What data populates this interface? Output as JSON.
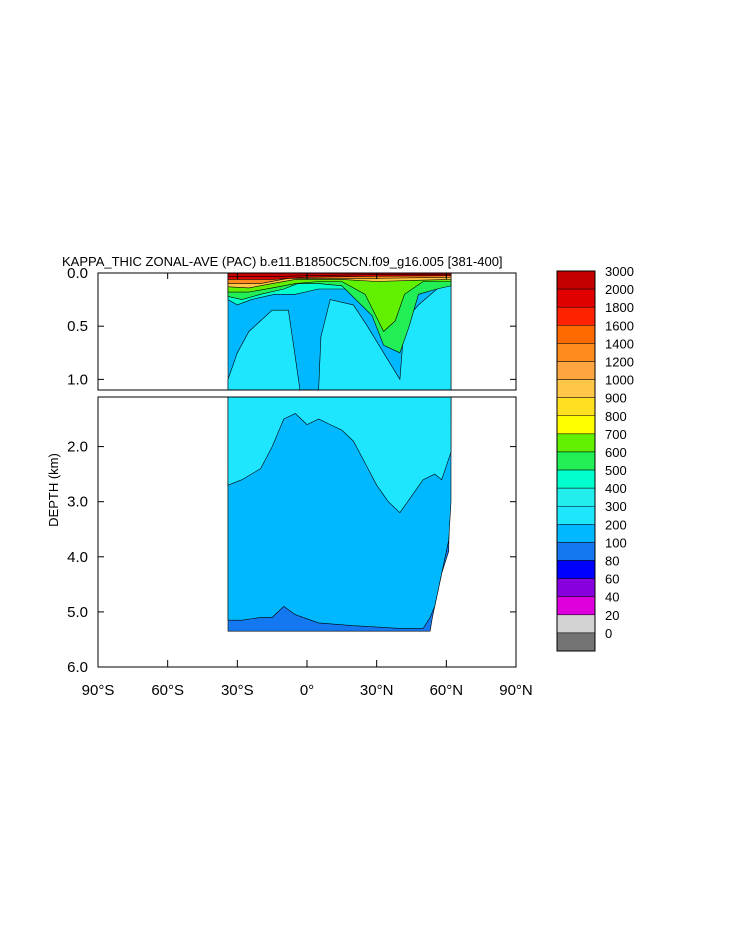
{
  "chart_data": {
    "type": "heatmap",
    "title": "KAPPA_THIC ZONAL-AVE (PAC) b.e11.B1850C5CN.f09_g16.005 [381-400]",
    "ylabel": "DEPTH (km)",
    "xlabel": "",
    "x_ticks": [
      "90°S",
      "60°S",
      "30°S",
      "0°",
      "30°N",
      "60°N",
      "90°N"
    ],
    "x_tick_values": [
      -90,
      -60,
      -30,
      0,
      30,
      60,
      90
    ],
    "upper_panel": {
      "ylim": [
        0,
        1.1
      ],
      "y_ticks": [
        "0.0",
        "0.5",
        "1.0"
      ],
      "y_tick_values": [
        0,
        0.5,
        1.0
      ]
    },
    "lower_panel": {
      "ylim": [
        1.1,
        6.0
      ],
      "y_ticks": [
        "2.0",
        "3.0",
        "4.0",
        "5.0",
        "6.0"
      ],
      "y_tick_values": [
        2,
        3,
        4,
        5,
        6
      ]
    },
    "grid": false,
    "legend_placement": "right",
    "colorbar_labels": [
      "3000",
      "2000",
      "1800",
      "1600",
      "1400",
      "1200",
      "1000",
      "900",
      "800",
      "700",
      "600",
      "500",
      "400",
      "300",
      "200",
      "100",
      "80",
      "60",
      "40",
      "20",
      "0"
    ],
    "colorbar_colors": [
      "#c40000",
      "#e00000",
      "#ff2200",
      "#ff6a00",
      "#ff8a1e",
      "#ffa640",
      "#ffc648",
      "#ffe020",
      "#ffff00",
      "#60f000",
      "#22ee55",
      "#00ffcc",
      "#22eeee",
      "#1ee6ff",
      "#00b8ff",
      "#1478f0",
      "#0000ff",
      "#8800dd",
      "#dd00dd",
      "#d2d2d2",
      "#737373"
    ],
    "fields": {
      "upper": [
        {
          "value": 300,
          "color": "#00b8ff",
          "outline": [
            [
              -34,
              0
            ],
            [
              62,
              0
            ],
            [
              62,
              1.1
            ],
            [
              -34,
              1.1
            ]
          ]
        },
        {
          "value": 400,
          "color": "#1ee6ff",
          "outline": [
            [
              -34,
              1.0
            ],
            [
              -30,
              0.75
            ],
            [
              -25,
              0.55
            ],
            [
              -15,
              0.35
            ],
            [
              -8,
              0.35
            ],
            [
              -5,
              0.8
            ],
            [
              -3,
              1.1
            ],
            [
              5,
              1.1
            ],
            [
              6,
              0.6
            ],
            [
              10,
              0.25
            ],
            [
              20,
              0.3
            ],
            [
              26,
              0.5
            ],
            [
              33,
              0.75
            ],
            [
              40,
              1.0
            ],
            [
              42,
              0.45
            ],
            [
              48,
              0.3
            ],
            [
              56,
              0.15
            ],
            [
              62,
              0.1
            ],
            [
              62,
              1.1
            ],
            [
              -34,
              1.1
            ]
          ]
        },
        {
          "value": 500,
          "color": "#00ffcc",
          "outline": [
            [
              -34,
              0.25
            ],
            [
              -30,
              0.3
            ],
            [
              -24,
              0.25
            ],
            [
              -14,
              0.2
            ],
            [
              -5,
              0.2
            ],
            [
              5,
              0.15
            ],
            [
              18,
              0.15
            ],
            [
              27,
              0.18
            ],
            [
              40,
              0.15
            ],
            [
              52,
              0.12
            ],
            [
              62,
              0.1
            ],
            [
              62,
              0.05
            ],
            [
              -34,
              0.05
            ]
          ]
        },
        {
          "value": 600,
          "color": "#22ee55",
          "outline": [
            [
              -34,
              0.22
            ],
            [
              -28,
              0.25
            ],
            [
              -20,
              0.2
            ],
            [
              -10,
              0.15
            ],
            [
              -4,
              0.1
            ],
            [
              5,
              0.1
            ],
            [
              15,
              0.12
            ],
            [
              28,
              0.4
            ],
            [
              33,
              0.68
            ],
            [
              40,
              0.75
            ],
            [
              44,
              0.5
            ],
            [
              48,
              0.2
            ],
            [
              56,
              0.15
            ],
            [
              62,
              0.12
            ],
            [
              62,
              0.05
            ],
            [
              -34,
              0.05
            ]
          ]
        },
        {
          "value": 700,
          "color": "#60f000",
          "outline": [
            [
              -34,
              0.18
            ],
            [
              -25,
              0.18
            ],
            [
              -15,
              0.14
            ],
            [
              -5,
              0.1
            ],
            [
              5,
              0.08
            ],
            [
              15,
              0.08
            ],
            [
              25,
              0.2
            ],
            [
              33,
              0.55
            ],
            [
              38,
              0.45
            ],
            [
              42,
              0.2
            ],
            [
              50,
              0.08
            ],
            [
              62,
              0.08
            ],
            [
              62,
              0.05
            ],
            [
              -34,
              0.05
            ]
          ]
        },
        {
          "value": 1000,
          "color": "#ffc648",
          "outline": [
            [
              -34,
              0.13
            ],
            [
              -25,
              0.14
            ],
            [
              -15,
              0.1
            ],
            [
              -5,
              0.06
            ],
            [
              5,
              0.06
            ],
            [
              15,
              0.06
            ],
            [
              30,
              0.08
            ],
            [
              45,
              0.07
            ],
            [
              62,
              0.06
            ],
            [
              62,
              0.02
            ],
            [
              -34,
              0.02
            ]
          ]
        },
        {
          "value": 1400,
          "color": "#ff8a1e",
          "outline": [
            [
              -34,
              0.1
            ],
            [
              -20,
              0.1
            ],
            [
              -8,
              0.05
            ],
            [
              5,
              0.05
            ],
            [
              30,
              0.05
            ],
            [
              62,
              0.04
            ],
            [
              62,
              0.02
            ],
            [
              -34,
              0.02
            ]
          ]
        },
        {
          "value": 2000,
          "color": "#e00000",
          "outline": [
            [
              -34,
              0.06
            ],
            [
              -15,
              0.06
            ],
            [
              0,
              0.04
            ],
            [
              30,
              0.03
            ],
            [
              62,
              0.025
            ],
            [
              62,
              0
            ],
            [
              -34,
              0
            ]
          ]
        },
        {
          "value": 3000,
          "color": "#c40000",
          "outline": [
            [
              -34,
              0.035
            ],
            [
              -15,
              0.035
            ],
            [
              0,
              0.025
            ],
            [
              30,
              0.015
            ],
            [
              62,
              0.012
            ],
            [
              62,
              0
            ],
            [
              -34,
              0
            ]
          ]
        }
      ],
      "lower": [
        {
          "value": 200,
          "color": "#1478f0",
          "outline": [
            [
              -34,
              1.1
            ],
            [
              62,
              1.1
            ],
            [
              62,
              1.4
            ],
            [
              61,
              3.9
            ],
            [
              58,
              4.3
            ],
            [
              56,
              4.7
            ],
            [
              54,
              5.1
            ],
            [
              53,
              5.35
            ],
            [
              -34,
              5.35
            ]
          ]
        },
        {
          "value": 300,
          "color": "#00b8ff",
          "outline": [
            [
              -34,
              1.1
            ],
            [
              62,
              1.1
            ],
            [
              62,
              3.0
            ],
            [
              61,
              3.7
            ],
            [
              59,
              4.1
            ],
            [
              57,
              4.5
            ],
            [
              55,
              4.9
            ],
            [
              53,
              5.1
            ],
            [
              50,
              5.3
            ],
            [
              40,
              5.3
            ],
            [
              20,
              5.25
            ],
            [
              5,
              5.2
            ],
            [
              -5,
              5.05
            ],
            [
              -10,
              4.9
            ],
            [
              -15,
              5.1
            ],
            [
              -20,
              5.1
            ],
            [
              -28,
              5.15
            ],
            [
              -34,
              5.15
            ]
          ]
        },
        {
          "value": 400,
          "color": "#1ee6ff",
          "outline": [
            [
              -34,
              2.7
            ],
            [
              -28,
              2.6
            ],
            [
              -20,
              2.4
            ],
            [
              -15,
              2.0
            ],
            [
              -10,
              1.5
            ],
            [
              -5,
              1.4
            ],
            [
              0,
              1.6
            ],
            [
              5,
              1.5
            ],
            [
              10,
              1.6
            ],
            [
              15,
              1.7
            ],
            [
              20,
              1.9
            ],
            [
              25,
              2.3
            ],
            [
              30,
              2.7
            ],
            [
              35,
              3.0
            ],
            [
              40,
              3.2
            ],
            [
              45,
              2.9
            ],
            [
              50,
              2.6
            ],
            [
              55,
              2.5
            ],
            [
              58,
              2.6
            ],
            [
              62,
              2.1
            ],
            [
              62,
              1.1
            ],
            [
              -34,
              1.1
            ]
          ]
        }
      ]
    }
  }
}
